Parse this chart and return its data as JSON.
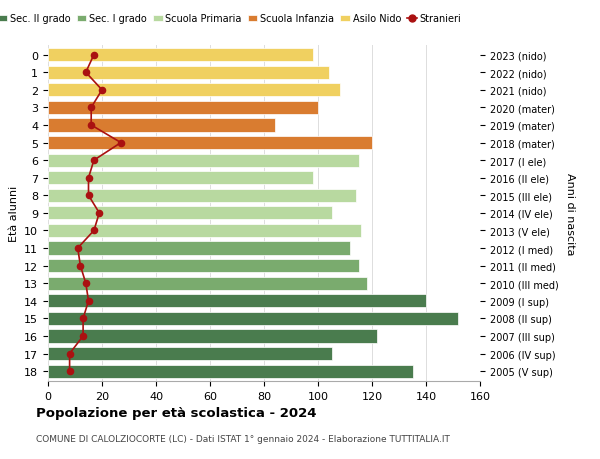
{
  "ages": [
    18,
    17,
    16,
    15,
    14,
    13,
    12,
    11,
    10,
    9,
    8,
    7,
    6,
    5,
    4,
    3,
    2,
    1,
    0
  ],
  "years": [
    "2005 (V sup)",
    "2006 (IV sup)",
    "2007 (III sup)",
    "2008 (II sup)",
    "2009 (I sup)",
    "2010 (III med)",
    "2011 (II med)",
    "2012 (I med)",
    "2013 (V ele)",
    "2014 (IV ele)",
    "2015 (III ele)",
    "2016 (II ele)",
    "2017 (I ele)",
    "2018 (mater)",
    "2019 (mater)",
    "2020 (mater)",
    "2021 (nido)",
    "2022 (nido)",
    "2023 (nido)"
  ],
  "bar_values": [
    135,
    105,
    122,
    152,
    140,
    118,
    115,
    112,
    116,
    105,
    114,
    98,
    115,
    120,
    84,
    100,
    108,
    104,
    98
  ],
  "bar_colors": [
    "#4a7c4e",
    "#4a7c4e",
    "#4a7c4e",
    "#4a7c4e",
    "#4a7c4e",
    "#7aab6e",
    "#7aab6e",
    "#7aab6e",
    "#b8d9a0",
    "#b8d9a0",
    "#b8d9a0",
    "#b8d9a0",
    "#b8d9a0",
    "#d97c30",
    "#d97c30",
    "#d97c30",
    "#f0d060",
    "#f0d060",
    "#f0d060"
  ],
  "stranieri_values": [
    8,
    8,
    13,
    13,
    15,
    14,
    12,
    11,
    17,
    19,
    15,
    15,
    17,
    27,
    16,
    16,
    20,
    14,
    17
  ],
  "stranieri_color": "#aa1111",
  "title": "Popolazione per età scolastica - 2024",
  "subtitle": "COMUNE DI CALOLZIOCORTE (LC) - Dati ISTAT 1° gennaio 2024 - Elaborazione TUTTITALIA.IT",
  "ylabel_left": "Età alunni",
  "ylabel_right": "Anni di nascita",
  "xlim": [
    0,
    160
  ],
  "xticks": [
    0,
    20,
    40,
    60,
    80,
    100,
    120,
    140,
    160
  ],
  "legend_labels": [
    "Sec. II grado",
    "Sec. I grado",
    "Scuola Primaria",
    "Scuola Infanzia",
    "Asilo Nido",
    "Stranieri"
  ],
  "legend_colors": [
    "#4a7c4e",
    "#7aab6e",
    "#b8d9a0",
    "#d97c30",
    "#f0d060",
    "#aa1111"
  ],
  "bg_color": "#ffffff",
  "bar_height": 0.75,
  "grid_color": "#dddddd"
}
